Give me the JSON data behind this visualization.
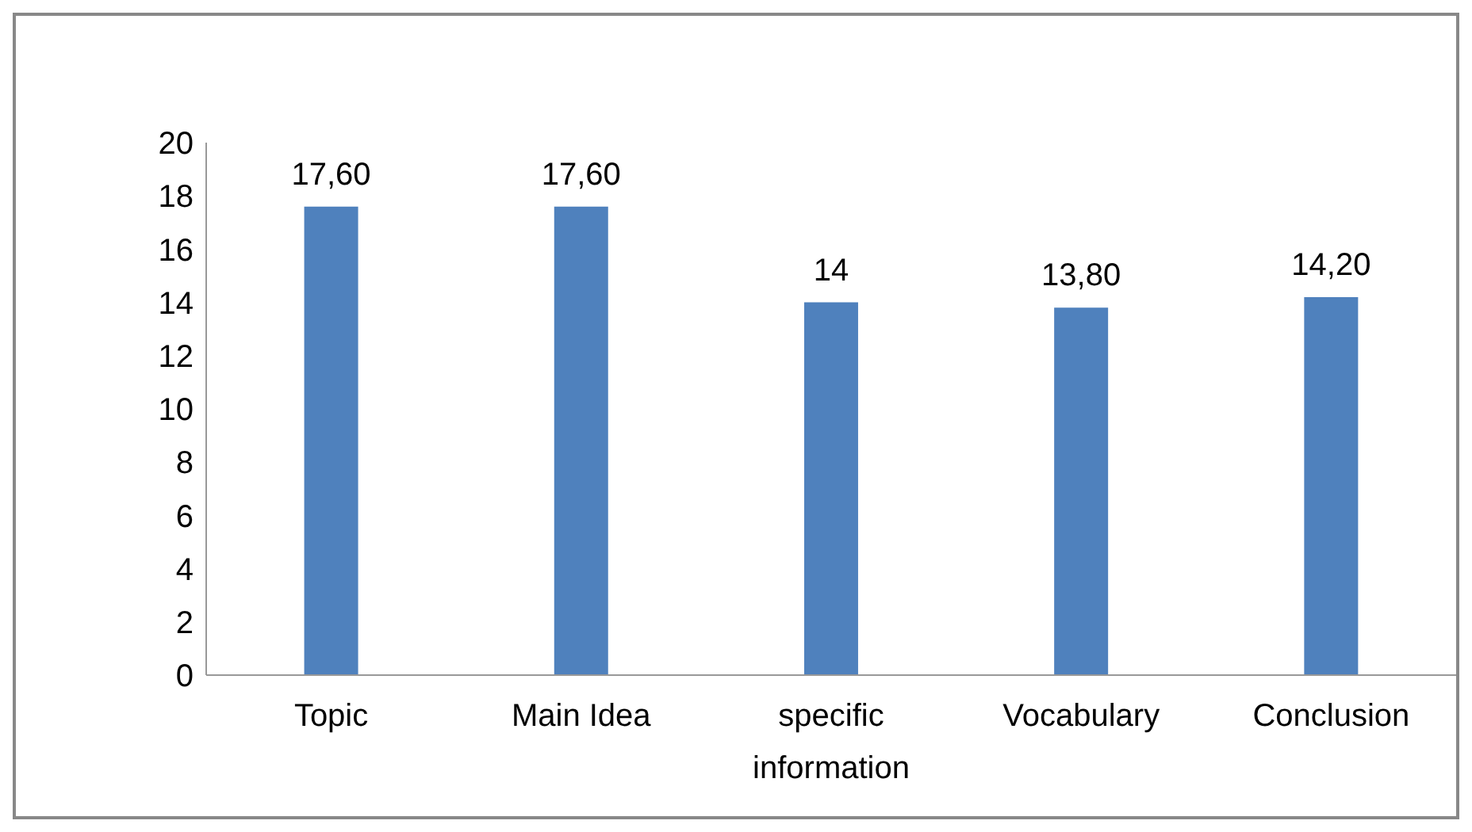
{
  "chart_data": {
    "type": "bar",
    "categories": [
      "Topic",
      "Main Idea",
      "specific information",
      "Vocabulary",
      "Conclusion"
    ],
    "series": [
      {
        "color": "#4f81bd",
        "values": [
          17.6,
          17.6,
          14,
          13.8,
          14.2
        ],
        "value_labels": [
          "17,60",
          "17,60",
          "14",
          "13,80",
          "14,20"
        ]
      }
    ],
    "ylim": [
      0,
      20
    ],
    "yticks": [
      0,
      2,
      4,
      6,
      8,
      10,
      12,
      14,
      16,
      18,
      20
    ],
    "grid": false,
    "legend": false
  }
}
